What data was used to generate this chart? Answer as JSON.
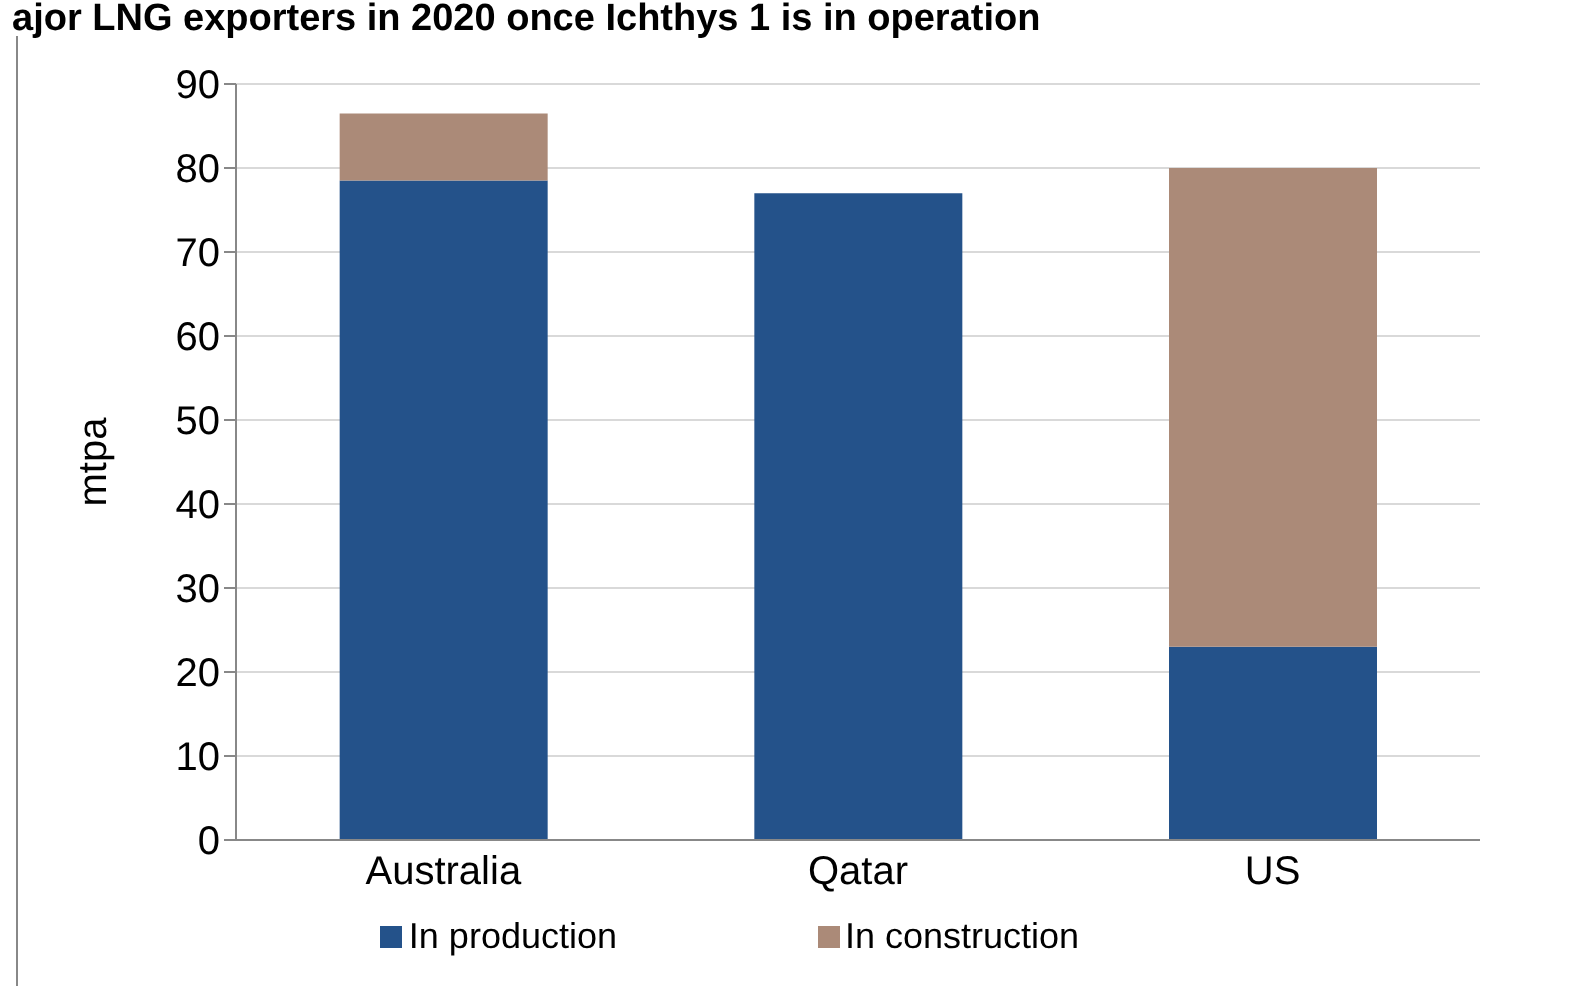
{
  "chart_data": {
    "type": "bar",
    "title": "ajor LNG exporters in 2020 once Ichthys 1 is in operation",
    "ylabel": "mtpa",
    "categories": [
      "Australia",
      "Qatar",
      "US"
    ],
    "stacked": true,
    "series": [
      {
        "name": "In production",
        "color": "#24528a",
        "values": [
          78.5,
          77,
          23
        ]
      },
      {
        "name": "In construction",
        "color": "#ab8a78",
        "values": [
          8,
          0,
          57
        ]
      }
    ],
    "ylim": [
      0,
      90
    ],
    "yticks": [
      0,
      10,
      20,
      30,
      40,
      50,
      60,
      70,
      80,
      90
    ],
    "grid": "y",
    "legend": "bottom"
  }
}
